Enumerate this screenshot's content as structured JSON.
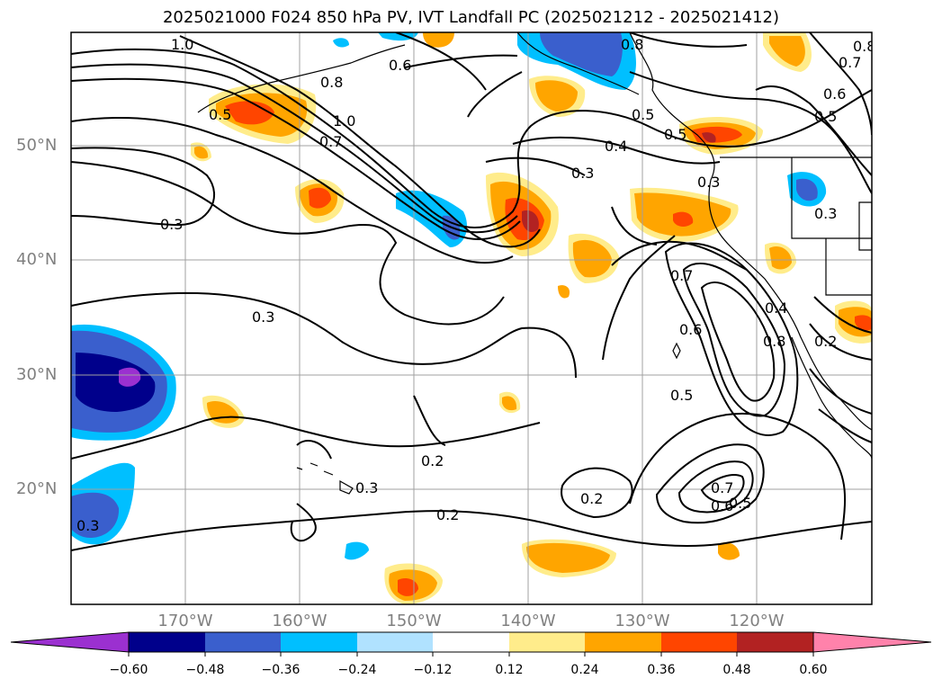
{
  "title": "2025021000 F024 850 hPa PV, IVT Landfall PC (2025021212 - 2025021412)",
  "lat_labels": [
    "50°N",
    "40°N",
    "30°N",
    "20°N"
  ],
  "lon_labels": [
    "170°W",
    "160°W",
    "150°W",
    "140°W",
    "130°W",
    "120°W"
  ],
  "colorbar": {
    "ticks": [
      "−0.60",
      "−0.48",
      "−0.36",
      "−0.24",
      "−0.12",
      "0.12",
      "0.24",
      "0.36",
      "0.48",
      "0.60"
    ],
    "colors": [
      "#9b30d0",
      "#00008b",
      "#3a5fcd",
      "#00bfff",
      "#b0e2ff",
      "#ffffff",
      "#ffec8b",
      "#ffa500",
      "#ff4500",
      "#b22222",
      "#ff82ab"
    ]
  },
  "contour_labels": [
    "1.0",
    "0.8",
    "0.6",
    "0.8",
    "0.5",
    "1.0",
    "0.7",
    "0.3",
    "0.4",
    "0.3",
    "0.5",
    "0.3",
    "0.3",
    "0.7",
    "0.6",
    "0.5",
    "0.4",
    "0.8",
    "0.2",
    "0.5",
    "0.2",
    "0.2",
    "0.3",
    "0.7",
    "0.6",
    "0.5",
    "0.2",
    "0.8",
    "0.7",
    "0.6",
    "0.5",
    "0.3",
    "0.3"
  ],
  "map_style": {
    "frame_color": "#000000",
    "grid_color": "#a0a0a0",
    "contour_color": "#000000"
  }
}
